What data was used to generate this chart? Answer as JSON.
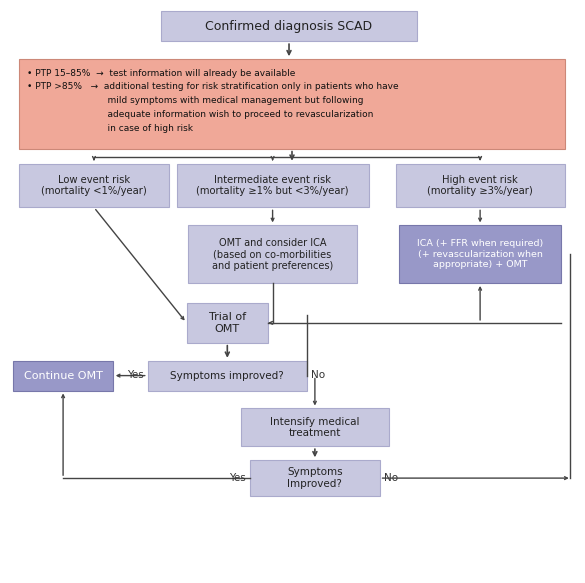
{
  "bg_color": "#ffffff",
  "box_purple_light": "#c8c8e0",
  "box_purple_dark": "#9898c8",
  "box_salmon": "#f0a898",
  "text_color": "#222222",
  "arrow_color": "#444444",
  "title": "Confirmed diagnosis SCAD",
  "ptp_line1": "• PTP 15–85%  →  test information will already be available",
  "ptp_line2a": "• PTP >85%   →  additional testing for risk stratification only in patients who have",
  "ptp_line2b": "                            mild symptoms with medical management but following",
  "ptp_line2c": "                            adequate information wish to proceed to revascularization",
  "ptp_line2d": "                            in case of high risk",
  "low_risk": "Low event risk\n(mortality <1%/year)",
  "int_risk": "Intermediate event risk\n(mortality ≥1% but <3%/year)",
  "high_risk": "High event risk\n(mortality ≥3%/year)",
  "omt_consider": "OMT and consider ICA\n(based on co-morbilities\nand patient preferences)",
  "ica_box": "ICA (+ FFR when required)\n(+ revascularization when\nappropriate) + OMT",
  "trial_omt": "Trial of\nOMT",
  "symptoms1": "Symptoms improved?",
  "continue_omt": "Continue OMT",
  "intensify": "Intensify medical\ntreatment",
  "symptoms2": "Symptoms\nImproved?"
}
